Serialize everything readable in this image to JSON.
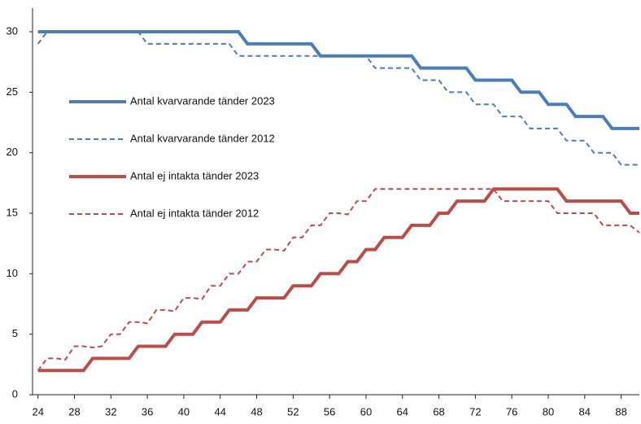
{
  "chart_data": {
    "type": "line",
    "x": [
      24,
      25,
      26,
      27,
      28,
      29,
      30,
      31,
      32,
      33,
      34,
      35,
      36,
      37,
      38,
      39,
      40,
      41,
      42,
      43,
      44,
      45,
      46,
      47,
      48,
      49,
      50,
      51,
      52,
      53,
      54,
      55,
      56,
      57,
      58,
      59,
      60,
      61,
      62,
      63,
      64,
      65,
      66,
      67,
      68,
      69,
      70,
      71,
      72,
      73,
      74,
      75,
      76,
      77,
      78,
      79,
      80,
      81,
      82,
      83,
      84,
      85,
      86,
      87,
      88,
      89,
      90
    ],
    "series": [
      {
        "name": "Antal kvarvarande tänder 2023",
        "color": "#4a7ebb",
        "style": "solid",
        "values": [
          30,
          30,
          30,
          30,
          30,
          30,
          30,
          30,
          30,
          30,
          30,
          30,
          30,
          30,
          30,
          30,
          30,
          30,
          30,
          30,
          30,
          30,
          30,
          29,
          29,
          29,
          29,
          29,
          29,
          29,
          29,
          28,
          28,
          28,
          28,
          28,
          28,
          28,
          28,
          28,
          28,
          28,
          27,
          27,
          27,
          27,
          27,
          27,
          26,
          26,
          26,
          26,
          26,
          25,
          25,
          25,
          24,
          24,
          24,
          23,
          23,
          23,
          23,
          22,
          22,
          22,
          22
        ]
      },
      {
        "name": "Antal kvarvarande tänder 2012",
        "color": "#4a7ebb",
        "style": "dashed",
        "values": [
          29,
          30,
          30,
          30,
          30,
          30,
          30,
          30,
          30,
          30,
          30,
          30,
          29,
          29,
          29,
          29,
          29,
          29,
          29,
          29,
          29,
          29,
          28,
          28,
          28,
          28,
          28,
          28,
          28,
          28,
          28,
          28,
          28,
          28,
          28,
          28,
          28,
          27,
          27,
          27,
          27,
          27,
          26,
          26,
          26,
          25,
          25,
          25,
          24,
          24,
          24,
          23,
          23,
          23,
          22,
          22,
          22,
          22,
          21,
          21,
          21,
          20,
          20,
          20,
          19,
          19,
          19
        ]
      },
      {
        "name": "Antal ej intakta tänder 2023",
        "color": "#be4b48",
        "style": "solid",
        "values": [
          2,
          2,
          2,
          2,
          2,
          2,
          3,
          3,
          3,
          3,
          3,
          4,
          4,
          4,
          4,
          5,
          5,
          5,
          6,
          6,
          6,
          7,
          7,
          7,
          8,
          8,
          8,
          8,
          9,
          9,
          9,
          10,
          10,
          10,
          11,
          11,
          12,
          12,
          13,
          13,
          13,
          14,
          14,
          14,
          15,
          15,
          16,
          16,
          16,
          16,
          17,
          17,
          17,
          17,
          17,
          17,
          17,
          17,
          16,
          16,
          16,
          16,
          16,
          16,
          16,
          15,
          15
        ]
      },
      {
        "name": "Antal ej intakta tänder 2012",
        "color": "#be4b48",
        "style": "dashed",
        "values": [
          2,
          3,
          3,
          2.9,
          4,
          4,
          3.9,
          4,
          5,
          5,
          6,
          6,
          5.9,
          7,
          7,
          6.9,
          8,
          8,
          7.9,
          9,
          9,
          10,
          10,
          11,
          11,
          12,
          12,
          11.9,
          13,
          13,
          14,
          14,
          15,
          15,
          14.9,
          16,
          16,
          17,
          17,
          17,
          17,
          17,
          17,
          17,
          17,
          17,
          17,
          17,
          17,
          17,
          17,
          16,
          16,
          16,
          16,
          16,
          16,
          15,
          15,
          15,
          15,
          15,
          14,
          14,
          14,
          14,
          13.4
        ]
      }
    ],
    "xlim": [
      23.4,
      90
    ],
    "xticks": [
      24,
      28,
      32,
      36,
      40,
      44,
      48,
      52,
      56,
      60,
      64,
      68,
      72,
      76,
      80,
      84,
      88
    ],
    "ylim": [
      0,
      30
    ],
    "yticks": [
      0,
      5,
      10,
      15,
      20,
      25,
      30
    ],
    "grid": false
  }
}
